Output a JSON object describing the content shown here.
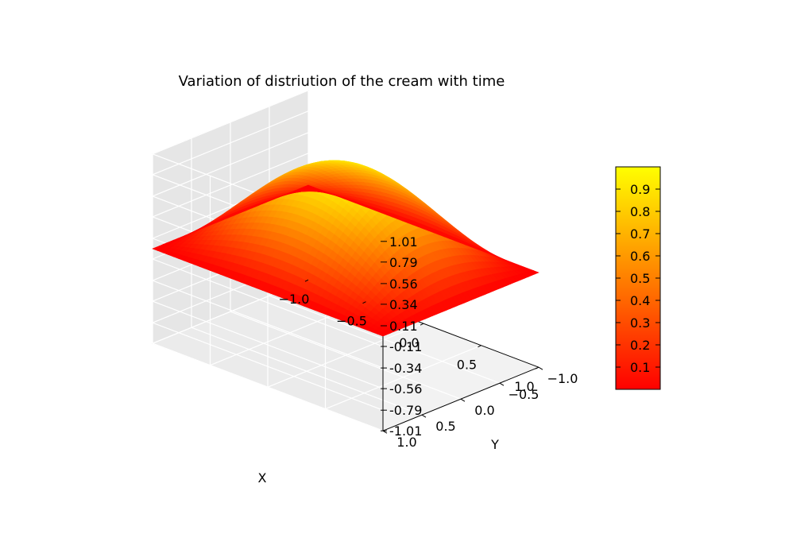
{
  "chart_data": {
    "type": "surface3d",
    "title": "Variation of distriution of the cream with time",
    "xlabel": "X",
    "ylabel": "Y",
    "zlabel": "",
    "xlim": [
      -1.0,
      1.0
    ],
    "ylim": [
      -1.0,
      1.0
    ],
    "zlim": [
      -1.01,
      1.01
    ],
    "xticks": [
      "−1.0",
      "−0.5",
      "0.0",
      "0.5",
      "1.0"
    ],
    "yticks": [
      "−1.0",
      "−0.5",
      "0.0",
      "0.5",
      "1.0"
    ],
    "zticks": [
      "-1.01",
      "-0.79",
      "-0.56",
      "-0.34",
      "-0.11",
      "0.11",
      "0.34",
      "0.56",
      "0.79",
      "1.01"
    ],
    "surface": {
      "function": "cos(pi*x/2) * cos(pi*y/2)",
      "peak": {
        "x": 0.0,
        "y": 0.0,
        "z": 1.0
      },
      "edge_value": 0.0
    },
    "grid": true,
    "colormap": {
      "name": "autumn",
      "low_color": "#ff0000",
      "high_color": "#ffff00",
      "ticks": [
        "0.1",
        "0.2",
        "0.3",
        "0.4",
        "0.5",
        "0.6",
        "0.7",
        "0.8",
        "0.9"
      ],
      "range": [
        0.0,
        1.0
      ]
    }
  }
}
